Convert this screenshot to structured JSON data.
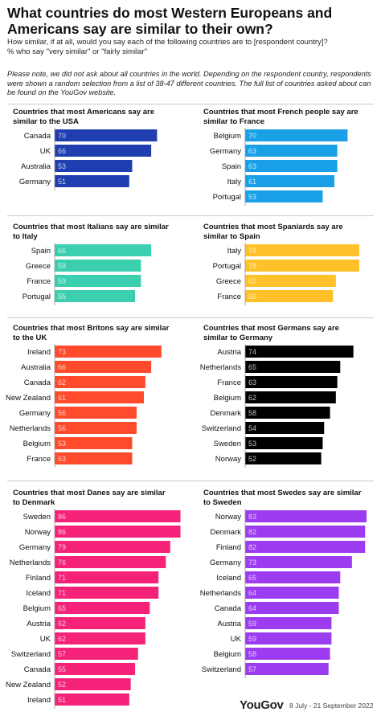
{
  "header": {
    "title": "What countries do most Western Europeans and Americans say are similar to their own?",
    "subtitle_line1": "How similar, if at all, would you say each of the following countries are to [respondent country]?",
    "subtitle_line2": "% who say \"very similar\" or \"fairly similar\"",
    "note": "Please note, we did not ask about all countries in the world. Depending on the respondent country, respondents were shown a random selection from a list of 38-47 different countries. The full list of countries asked about can be found on the YouGov website."
  },
  "footer": {
    "brand": "YouGov",
    "date": "8 July - 21 September 2022"
  },
  "chart_data": [
    {
      "type": "bar",
      "title": "Countries that most Americans say are similar to the USA",
      "categories": [
        "Canada",
        "UK",
        "Australia",
        "Germany"
      ],
      "values": [
        70,
        66,
        53,
        51
      ],
      "color": "#1f3fb0"
    },
    {
      "type": "bar",
      "title": "Countries that most French people say are similar to France",
      "categories": [
        "Belgium",
        "Germany",
        "Spain",
        "Italy",
        "Portugal"
      ],
      "values": [
        70,
        63,
        63,
        61,
        53
      ],
      "color": "#1aa0e6"
    },
    {
      "type": "bar",
      "title": "Countries that most Italians say are similar to Italy",
      "categories": [
        "Spain",
        "Greece",
        "France",
        "Portugal"
      ],
      "values": [
        66,
        59,
        59,
        55
      ],
      "color": "#3bcfb0"
    },
    {
      "type": "bar",
      "title": "Countries that most Spaniards say are similar to Spain",
      "categories": [
        "Italy",
        "Portugal",
        "Greece",
        "France"
      ],
      "values": [
        78,
        78,
        62,
        60
      ],
      "color": "#ffc12a"
    },
    {
      "type": "bar",
      "title": "Countries that most Britons say are similar to the UK",
      "categories": [
        "Ireland",
        "Australia",
        "Canada",
        "New Zealand",
        "Germany",
        "Netherlands",
        "Belgium",
        "France"
      ],
      "values": [
        73,
        66,
        62,
        61,
        56,
        56,
        53,
        53
      ],
      "color": "#ff4b2b"
    },
    {
      "type": "bar",
      "title": "Countries that most Germans say are similar to Germany",
      "categories": [
        "Austria",
        "Netherlands",
        "France",
        "Belgium",
        "Denmark",
        "Switzerland",
        "Sweden",
        "Norway"
      ],
      "values": [
        74,
        65,
        63,
        62,
        58,
        54,
        53,
        52
      ],
      "color": "#000000"
    },
    {
      "type": "bar",
      "title": "Countries that most Danes say are similar to Denmark",
      "categories": [
        "Sweden",
        "Norway",
        "Germany",
        "Netherlands",
        "Finland",
        "Iceland",
        "Belgium",
        "Austria",
        "UK",
        "Switzerland",
        "Canada",
        "New Zealand",
        "Ireland"
      ],
      "values": [
        86,
        86,
        79,
        76,
        71,
        71,
        65,
        62,
        62,
        57,
        55,
        52,
        51
      ],
      "color": "#f5227a"
    },
    {
      "type": "bar",
      "title": "Countries that most Swedes say are similar to Sweden",
      "categories": [
        "Norway",
        "Denmark",
        "Finland",
        "Germany",
        "Iceland",
        "Netherlands",
        "Canada",
        "Austria",
        "UK",
        "Belgium",
        "Switzerland"
      ],
      "values": [
        83,
        82,
        82,
        73,
        65,
        64,
        64,
        59,
        59,
        58,
        57
      ],
      "color": "#9b3cf0"
    }
  ]
}
